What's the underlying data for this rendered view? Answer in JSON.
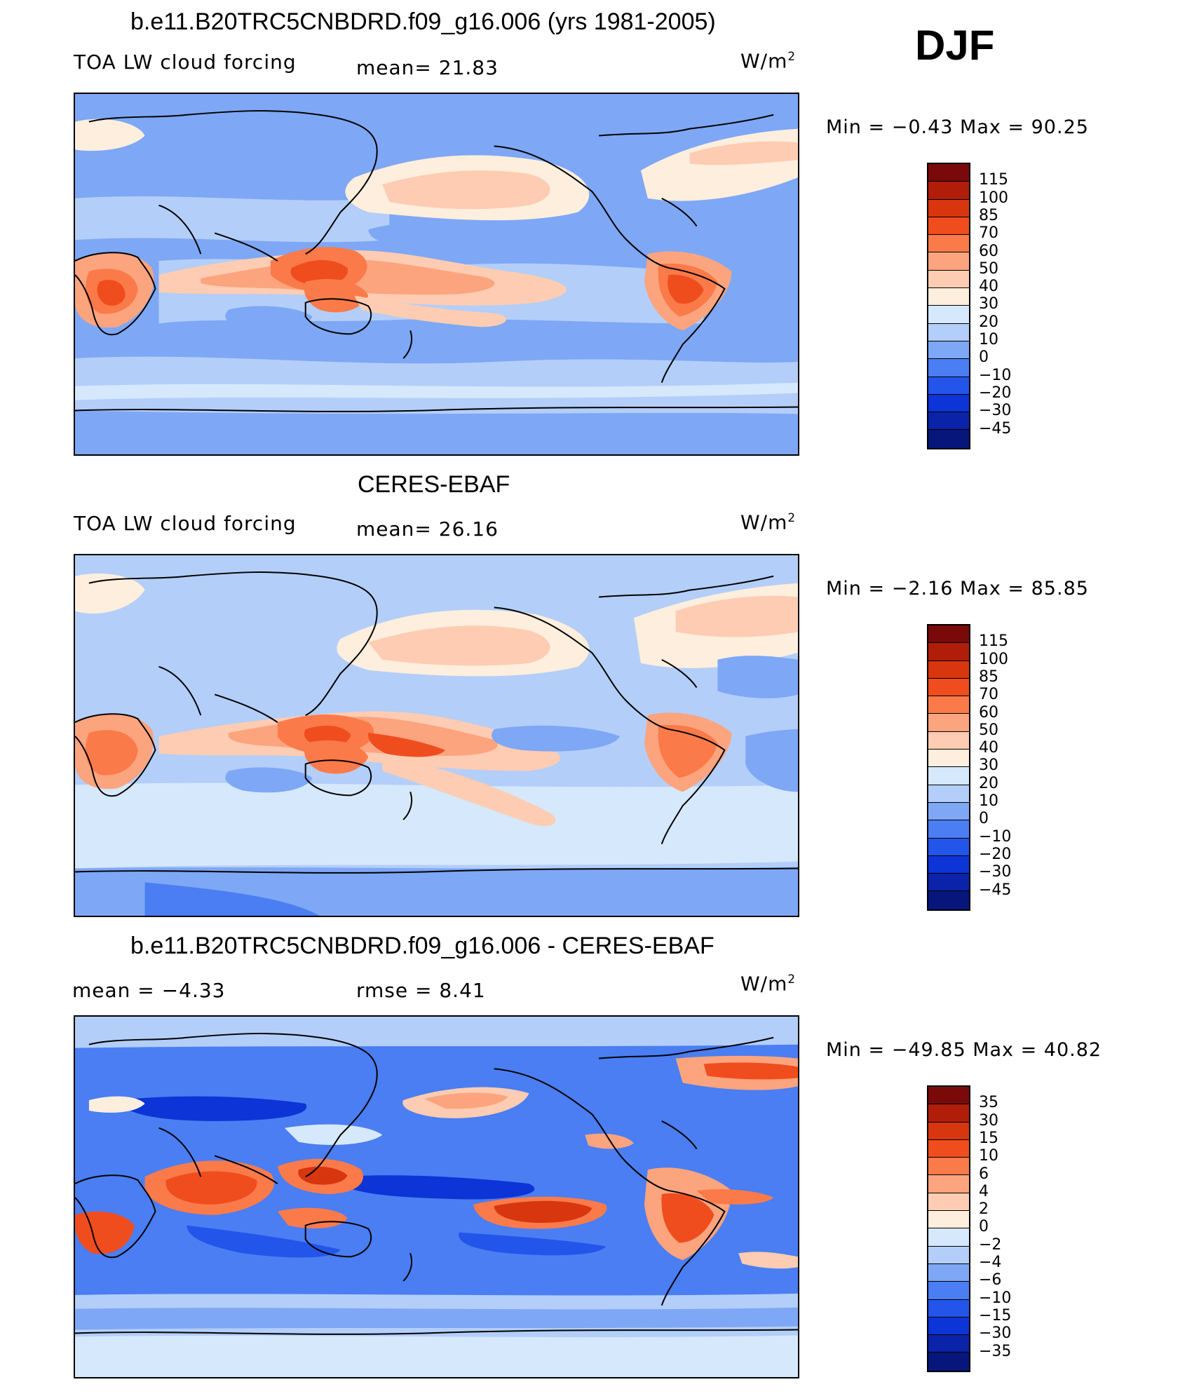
{
  "season": "DJF",
  "panels": [
    {
      "id": "model",
      "title": "b.e11.B20TRC5CNBDRD.f09_g16.006 (yrs 1981-2005)",
      "left_label": "TOA LW cloud forcing",
      "stat1": "mean=   21.83",
      "units_text": "W/m",
      "units_exp": "2",
      "minmax": "Min  =   −0.43  Max  =    90.25",
      "colorbar": {
        "colors": [
          "#7a0a0a",
          "#b01e0a",
          "#d8360f",
          "#f04d1e",
          "#fb7a4a",
          "#fca47e",
          "#fdccb2",
          "#fdeedd",
          "#d6e8fb",
          "#b3cef9",
          "#7ea7f5",
          "#4a7ef2",
          "#2355ea",
          "#0c34d6",
          "#0a23a8",
          "#06167a"
        ],
        "labels": [
          "115",
          "100",
          "85",
          "70",
          "60",
          "50",
          "40",
          "30",
          "20",
          "10",
          "0",
          "−10",
          "−20",
          "−30",
          "−45"
        ]
      }
    },
    {
      "id": "obs",
      "title": "CERES-EBAF",
      "left_label": "TOA LW cloud forcing",
      "stat1": "mean=   26.16",
      "units_text": "W/m",
      "units_exp": "2",
      "minmax": "Min  =   −2.16  Max  =    85.85",
      "colorbar": {
        "colors": [
          "#7a0a0a",
          "#b01e0a",
          "#d8360f",
          "#f04d1e",
          "#fb7a4a",
          "#fca47e",
          "#fdccb2",
          "#fdeedd",
          "#d6e8fb",
          "#b3cef9",
          "#7ea7f5",
          "#4a7ef2",
          "#2355ea",
          "#0c34d6",
          "#0a23a8",
          "#06167a"
        ],
        "labels": [
          "115",
          "100",
          "85",
          "70",
          "60",
          "50",
          "40",
          "30",
          "20",
          "10",
          "0",
          "−10",
          "−20",
          "−30",
          "−45"
        ]
      }
    },
    {
      "id": "diff",
      "title": "b.e11.B20TRC5CNBDRD.f09_g16.006 - CERES-EBAF",
      "left_label": "mean  =    −4.33",
      "stat1": "rmse  =     8.41",
      "units_text": "W/m",
      "units_exp": "2",
      "minmax": "Min  = −49.85  Max  =    40.82",
      "colorbar": {
        "colors": [
          "#7a0a0a",
          "#b01e0a",
          "#d8360f",
          "#f04d1e",
          "#fb7a4a",
          "#fca47e",
          "#fdccb2",
          "#fdeedd",
          "#d6e8fb",
          "#b3cef9",
          "#7ea7f5",
          "#4a7ef2",
          "#2355ea",
          "#0c34d6",
          "#0a23a8",
          "#06167a"
        ],
        "labels": [
          "35",
          "30",
          "15",
          "10",
          "6",
          "4",
          "2",
          "0",
          "−2",
          "−4",
          "−6",
          "−10",
          "−15",
          "−30",
          "−35"
        ]
      }
    }
  ]
}
